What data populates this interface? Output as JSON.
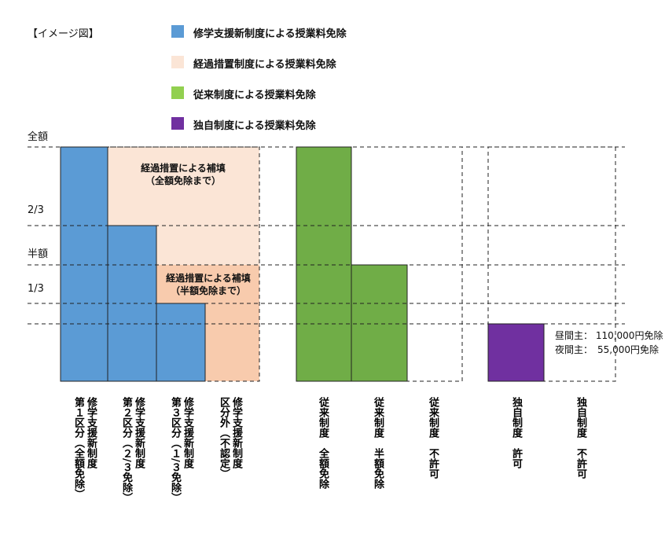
{
  "title": "【イメージ図】",
  "legend": [
    {
      "label": "修学支援新制度による授業料免除",
      "color": "#5b9bd5"
    },
    {
      "label": "経過措置制度による授業料免除",
      "color": "#fbe5d6"
    },
    {
      "label": "従来制度による授業料免除",
      "color": "#92d050"
    },
    {
      "label": "独自制度による授業料免除",
      "color": "#7030a0"
    }
  ],
  "levels": [
    "全額",
    "2/3",
    "半額",
    "1/3"
  ],
  "annotations": [
    [
      "経過措置による補填",
      "（全額免除まで）"
    ],
    [
      "経過措置による補填",
      "（半額免除まで）"
    ]
  ],
  "note": [
    "昼間主： 110,000円免除",
    "夜間主：　55,000円免除"
  ],
  "columns": [
    [
      "修学支援新制度",
      "第１区分（全額免除）"
    ],
    [
      "修学支援新制度",
      "第２区分（２/３免除）"
    ],
    [
      "修学支援新制度",
      "第３区分（１/３免除）"
    ],
    [
      "修学支援新制度",
      "区分外（不認定）"
    ],
    [
      "従来制度　全額免除"
    ],
    [
      "従来制度　半額免除"
    ],
    [
      "従来制度　不許可"
    ],
    [
      "独自制度　許可"
    ],
    [
      "独自制度　不許可"
    ]
  ]
}
